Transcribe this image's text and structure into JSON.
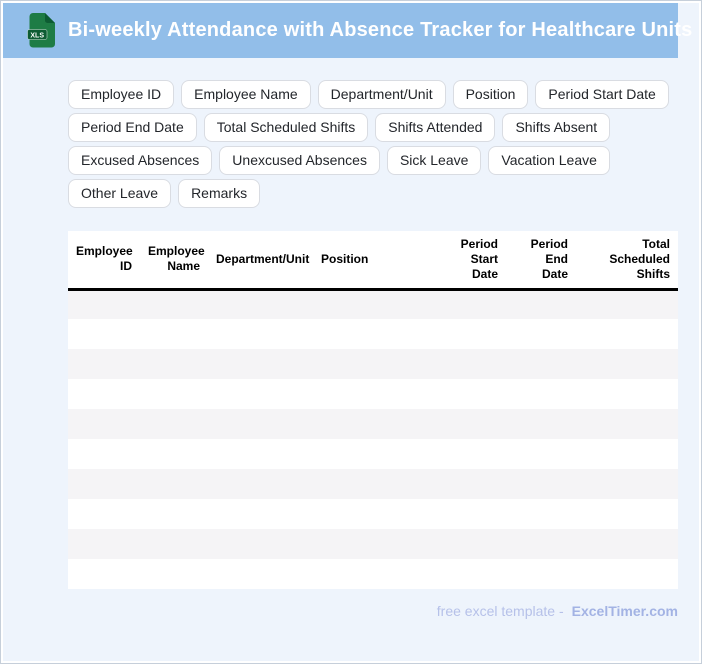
{
  "window": {
    "title": "Bi-weekly Attendance with Absence Tracker for Healthcare Units",
    "file_type_badge": "XLS"
  },
  "chips": [
    "Employee ID",
    "Employee Name",
    "Department/Unit",
    "Position",
    "Period Start Date",
    "Period End Date",
    "Total Scheduled Shifts",
    "Shifts Attended",
    "Shifts Absent",
    "Excused Absences",
    "Unexcused Absences",
    "Sick Leave",
    "Vacation Leave",
    "Other Leave",
    "Remarks"
  ],
  "table": {
    "columns": [
      {
        "label": "Employee\nID",
        "align": "right"
      },
      {
        "label": "Employee\nName",
        "align": "right"
      },
      {
        "label": "Department/Unit",
        "align": "left"
      },
      {
        "label": "Position",
        "align": "left"
      },
      {
        "label": "Period\nStart\nDate",
        "align": "right"
      },
      {
        "label": "Period\nEnd\nDate",
        "align": "right"
      },
      {
        "label": "Total\nScheduled\nShifts",
        "align": "right"
      }
    ],
    "row_count": 10
  },
  "footer": {
    "note": "free excel template -",
    "brand": "ExcelTimer.com"
  },
  "colors": {
    "header_bg": "#92bee9",
    "page_bg": "#eef4fc",
    "row_alt_bg": "#f5f4f6",
    "icon_green": "#1e7c45",
    "icon_green_dark": "#0d5c33",
    "footer_text": "#b6c1e9",
    "footer_brand": "#a3b3e4"
  }
}
